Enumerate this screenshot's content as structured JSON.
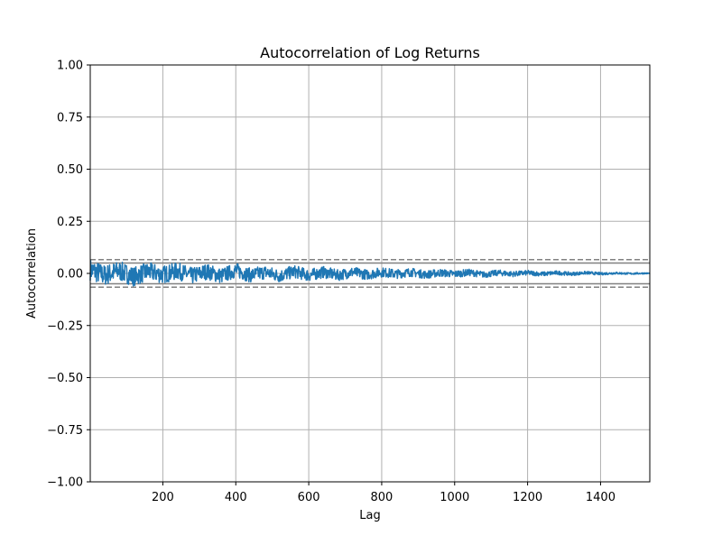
{
  "chart_data": {
    "type": "line",
    "title": "Autocorrelation of Log Returns",
    "xlabel": "Lag",
    "ylabel": "Autocorrelation",
    "xlim": [
      1,
      1535
    ],
    "ylim": [
      -1.0,
      1.0
    ],
    "grid": true,
    "x_ticks": [
      200,
      400,
      600,
      800,
      1000,
      1200,
      1400
    ],
    "x_tick_labels": [
      "200",
      "400",
      "600",
      "800",
      "1000",
      "1200",
      "1400"
    ],
    "y_ticks": [
      -1.0,
      -0.75,
      -0.5,
      -0.25,
      0.0,
      0.25,
      0.5,
      0.75,
      1.0
    ],
    "y_tick_labels": [
      "−1.00",
      "−0.75",
      "−0.50",
      "−0.25",
      "0.00",
      "0.25",
      "0.50",
      "0.75",
      "1.00"
    ],
    "confidence_lines": {
      "solid": [
        0.05,
        -0.05
      ],
      "dashed": [
        0.066,
        -0.066
      ],
      "solid_color": "#808080",
      "dashed_color": "#808080"
    },
    "series": [
      {
        "color": "#1f77b4",
        "n_lags": 1535,
        "max_abs_start": 0.07,
        "max_abs_end": 0.004,
        "x": [
          1,
          40,
          80,
          120,
          160,
          200,
          240,
          280,
          320,
          360,
          400,
          440,
          480,
          520,
          560,
          600,
          640,
          680,
          720,
          760,
          800,
          840,
          880,
          920,
          960,
          1000,
          1040,
          1080,
          1120,
          1160,
          1200,
          1240,
          1280,
          1320,
          1360,
          1400,
          1440,
          1480,
          1520,
          1535
        ],
        "y": [
          0.06,
          -0.03,
          0.04,
          -0.05,
          0.03,
          -0.02,
          0.04,
          -0.04,
          0.03,
          -0.04,
          0.05,
          -0.03,
          0.02,
          -0.04,
          0.03,
          -0.03,
          0.02,
          -0.03,
          0.02,
          -0.02,
          0.02,
          -0.01,
          0.02,
          -0.02,
          0.01,
          -0.01,
          0.015,
          -0.02,
          0.01,
          -0.01,
          0.01,
          -0.01,
          0.01,
          -0.008,
          0.01,
          -0.006,
          0.005,
          -0.004,
          0.002,
          0.0
        ]
      }
    ]
  }
}
